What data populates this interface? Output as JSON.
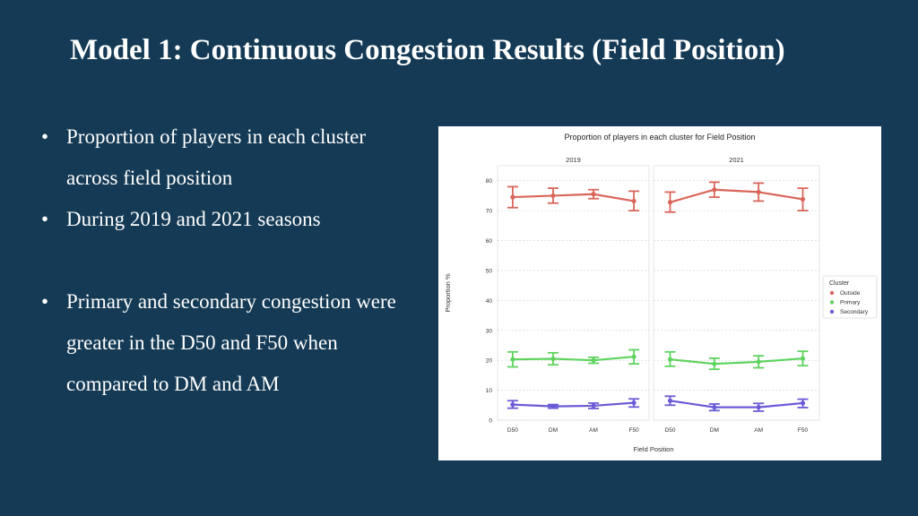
{
  "slide": {
    "title": "Model 1: Continuous Congestion Results (Field Position)",
    "bullets": [
      "Proportion of players in each cluster across field position",
      "During 2019 and 2021 seasons",
      "Primary and secondary congestion were greater in the D50 and F50 when compared to DM and AM"
    ],
    "bullet_glyph": "•"
  },
  "chart_data": {
    "type": "line",
    "title": "Proportion of players in each cluster for Field Position",
    "xlabel": "Field Position",
    "ylabel": "Proportion %",
    "categories": [
      "D50",
      "DM",
      "AM",
      "F50"
    ],
    "ylim": [
      0,
      85
    ],
    "yticks": [
      0,
      10,
      20,
      30,
      40,
      50,
      60,
      70,
      80
    ],
    "grid": true,
    "legend": {
      "title": "Cluster",
      "placement": "right"
    },
    "panels": [
      {
        "title": "2019",
        "series": [
          {
            "name": "Outside",
            "color": "#d9665b",
            "values": [
              74.5,
              75.0,
              75.5,
              73.2
            ],
            "lower": [
              71.0,
              72.5,
              74.0,
              70.0
            ],
            "upper": [
              78.0,
              77.5,
              77.0,
              76.5
            ]
          },
          {
            "name": "Primary",
            "color": "#5fd35f",
            "values": [
              20.3,
              20.5,
              20.0,
              21.2
            ],
            "lower": [
              17.8,
              18.5,
              19.0,
              18.8
            ],
            "upper": [
              22.8,
              22.5,
              21.0,
              23.5
            ]
          },
          {
            "name": "Secondary",
            "color": "#6b5bd6",
            "values": [
              5.2,
              4.6,
              4.8,
              5.8
            ],
            "lower": [
              4.0,
              4.0,
              3.9,
              4.4
            ],
            "upper": [
              6.5,
              5.2,
              5.7,
              7.1
            ]
          }
        ]
      },
      {
        "title": "2021",
        "series": [
          {
            "name": "Outside",
            "color": "#d9665b",
            "values": [
              72.8,
              77.0,
              76.2,
              73.8
            ],
            "lower": [
              69.5,
              74.5,
              73.2,
              70.0
            ],
            "upper": [
              76.2,
              79.5,
              79.2,
              77.5
            ]
          },
          {
            "name": "Primary",
            "color": "#5fd35f",
            "values": [
              20.3,
              18.8,
              19.5,
              20.6
            ],
            "lower": [
              18.0,
              17.0,
              17.5,
              18.2
            ],
            "upper": [
              22.8,
              20.7,
              21.5,
              23.0
            ]
          },
          {
            "name": "Secondary",
            "color": "#6b5bd6",
            "values": [
              6.5,
              4.3,
              4.3,
              5.7
            ],
            "lower": [
              5.0,
              3.2,
              3.0,
              4.2
            ],
            "upper": [
              8.0,
              5.4,
              5.6,
              7.0
            ]
          }
        ]
      }
    ]
  }
}
